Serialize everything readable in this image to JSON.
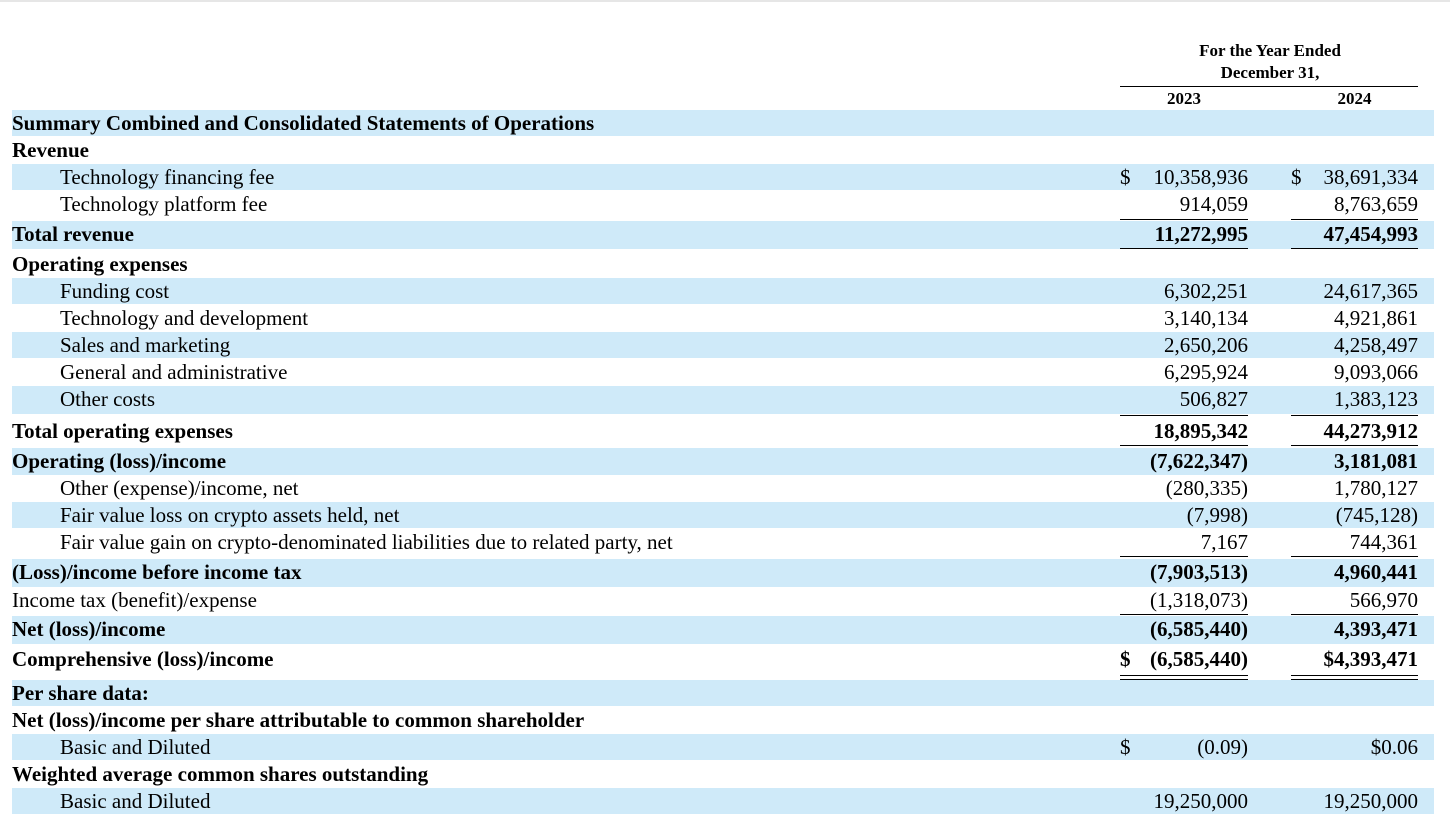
{
  "header": {
    "period_line1": "For the Year Ended",
    "period_line2": "December 31,",
    "year1": "2023",
    "year2": "2024"
  },
  "rows": [
    {
      "label": "Summary Combined and Consolidated Statements of Operations",
      "bold": true,
      "indent": false,
      "v1": "",
      "v2": "",
      "shaded": true
    },
    {
      "label": "Revenue",
      "bold": true,
      "indent": false,
      "v1": "",
      "v2": "",
      "shaded": false
    },
    {
      "label": "Technology financing fee",
      "bold": false,
      "indent": true,
      "cur1": "$",
      "v1": "10,358,936",
      "cur2": "$",
      "v2": "38,691,334",
      "shaded": true
    },
    {
      "label": "Technology platform fee",
      "bold": false,
      "indent": true,
      "v1": "914,059",
      "v2": "8,763,659",
      "shaded": false
    },
    {
      "label": "Total revenue",
      "bold": true,
      "indent": false,
      "v1": "11,272,995",
      "v2": "47,454,993",
      "shaded": true
    },
    {
      "label": "Operating expenses",
      "bold": true,
      "indent": false,
      "v1": "",
      "v2": "",
      "shaded": false
    },
    {
      "label": "Funding cost",
      "bold": false,
      "indent": true,
      "v1": "6,302,251",
      "v2": "24,617,365",
      "shaded": true
    },
    {
      "label": "Technology and development",
      "bold": false,
      "indent": true,
      "v1": "3,140,134",
      "v2": "4,921,861",
      "shaded": false
    },
    {
      "label": "Sales and marketing",
      "bold": false,
      "indent": true,
      "v1": "2,650,206",
      "v2": "4,258,497",
      "shaded": true
    },
    {
      "label": "General and administrative",
      "bold": false,
      "indent": true,
      "v1": "6,295,924",
      "v2": "9,093,066",
      "shaded": false
    },
    {
      "label": "Other costs",
      "bold": false,
      "indent": true,
      "v1": "506,827",
      "v2": "1,383,123",
      "shaded": true
    },
    {
      "label": "Total operating expenses",
      "bold": true,
      "indent": false,
      "v1": "18,895,342",
      "v2": "44,273,912",
      "shaded": false
    },
    {
      "label": "Operating (loss)/income",
      "bold": true,
      "indent": false,
      "v1": "(7,622,347)",
      "v2": "3,181,081",
      "shaded": true
    },
    {
      "label": "Other (expense)/income, net",
      "bold": false,
      "indent": true,
      "v1": "(280,335)",
      "v2": "1,780,127",
      "shaded": false
    },
    {
      "label": "Fair value loss on crypto assets held, net",
      "bold": false,
      "indent": true,
      "v1": "(7,998)",
      "v2": "(745,128)",
      "shaded": true
    },
    {
      "label": "Fair value gain on crypto-denominated liabilities due to related party, net",
      "bold": false,
      "indent": true,
      "v1": "7,167",
      "v2": "744,361",
      "shaded": false
    },
    {
      "label": "(Loss)/income before income tax",
      "bold": true,
      "indent": false,
      "v1": "(7,903,513)",
      "v2": "4,960,441",
      "shaded": true
    },
    {
      "label": "Income tax (benefit)/expense",
      "bold": false,
      "indent": false,
      "v1": "(1,318,073)",
      "v2": "566,970",
      "shaded": false
    },
    {
      "label": "Net (loss)/income",
      "bold": true,
      "indent": false,
      "v1": "(6,585,440)",
      "v2": "4,393,471",
      "shaded": true
    },
    {
      "label": "Comprehensive (loss)/income",
      "bold": true,
      "indent": false,
      "cur1": "$",
      "v1": "(6,585,440)",
      "v2": "$4,393,471",
      "shaded": false
    },
    {
      "label": "Per share data:",
      "bold": true,
      "indent": false,
      "v1": "",
      "v2": "",
      "shaded": true
    },
    {
      "label": "Net (loss)/income per share attributable to common shareholder",
      "bold": true,
      "indent": false,
      "v1": "",
      "v2": "",
      "shaded": false
    },
    {
      "label": "Basic and Diluted",
      "bold": false,
      "indent": true,
      "cur1": "$",
      "v1": "(0.09)",
      "v2": "$0.06",
      "shaded": true
    },
    {
      "label": "Weighted average common shares outstanding",
      "bold": true,
      "indent": false,
      "v1": "",
      "v2": "",
      "shaded": false
    },
    {
      "label": "Basic and Diluted",
      "bold": false,
      "indent": true,
      "v1": "19,250,000",
      "v2": "19,250,000",
      "shaded": true
    }
  ]
}
